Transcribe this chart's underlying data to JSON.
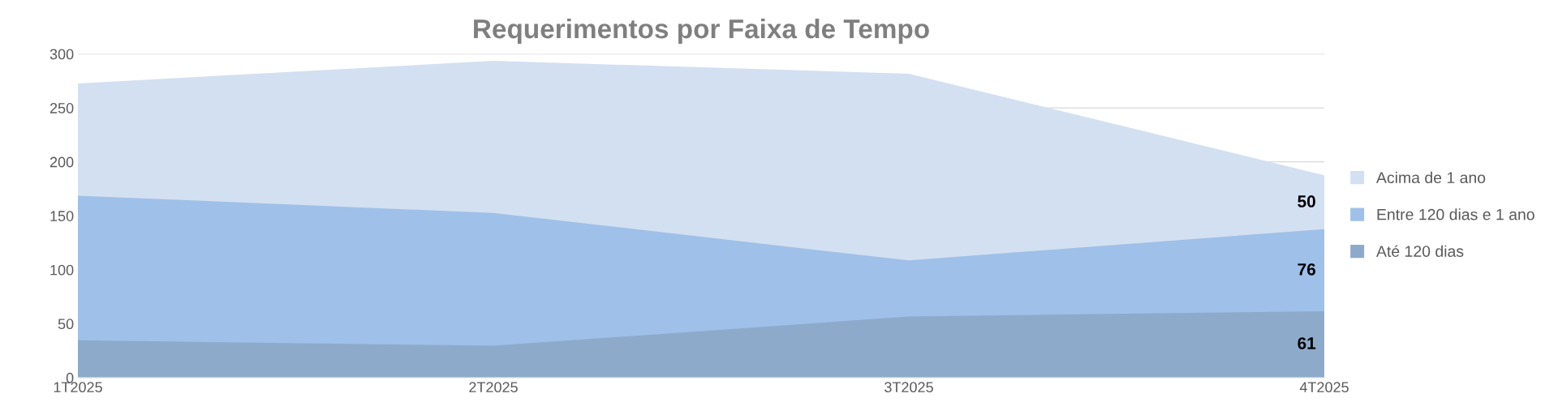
{
  "chart_data": {
    "type": "area",
    "title": "Requerimentos por Faixa de Tempo",
    "stacked": true,
    "categories": [
      "1T2025",
      "2T2025",
      "3T2025",
      "4T2025"
    ],
    "series": [
      {
        "name": "Até 120 dias",
        "color": "#8eaacb",
        "values": [
          34,
          29,
          56,
          61
        ],
        "value_labels": [
          null,
          null,
          null,
          "61"
        ]
      },
      {
        "name": "Entre 120 dias e 1 ano",
        "color": "#9fc0e8",
        "values": [
          134,
          123,
          52,
          76
        ],
        "value_labels": [
          null,
          null,
          null,
          "76"
        ]
      },
      {
        "name": "Acima de 1 ano",
        "color": "#d3e0f1",
        "values": [
          104,
          141,
          173,
          50
        ],
        "value_labels": [
          null,
          null,
          null,
          "50"
        ]
      }
    ],
    "ylim": [
      0,
      300
    ],
    "yticks": [
      0,
      50,
      100,
      150,
      200,
      250,
      300
    ],
    "grid": "y",
    "legend": "right"
  }
}
